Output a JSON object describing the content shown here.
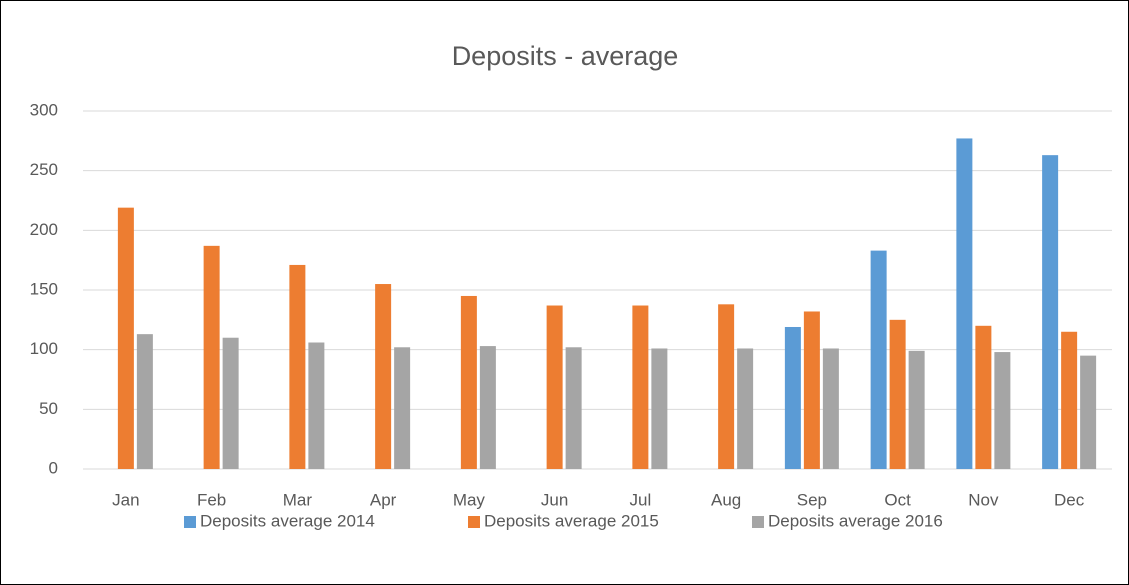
{
  "chart_data": {
    "type": "bar",
    "title": "Deposits - average",
    "categories": [
      "Jan",
      "Feb",
      "Mar",
      "Apr",
      "May",
      "Jun",
      "Jul",
      "Aug",
      "Sep",
      "Oct",
      "Nov",
      "Dec"
    ],
    "series": [
      {
        "name": "Deposits average 2014",
        "color": "#5b9bd5",
        "values": [
          null,
          null,
          null,
          null,
          null,
          null,
          null,
          null,
          119,
          183,
          277,
          263
        ]
      },
      {
        "name": "Deposits average 2015",
        "color": "#ed7d31",
        "values": [
          219,
          187,
          171,
          155,
          145,
          137,
          137,
          138,
          132,
          125,
          120,
          115
        ]
      },
      {
        "name": "Deposits average 2016",
        "color": "#a5a5a5",
        "values": [
          113,
          110,
          106,
          102,
          103,
          102,
          101,
          101,
          101,
          99,
          98,
          95
        ]
      }
    ],
    "ylim": [
      0,
      300
    ],
    "yticks": [
      0,
      50,
      100,
      150,
      200,
      250,
      300
    ],
    "grid": true,
    "legend": "bottom"
  }
}
